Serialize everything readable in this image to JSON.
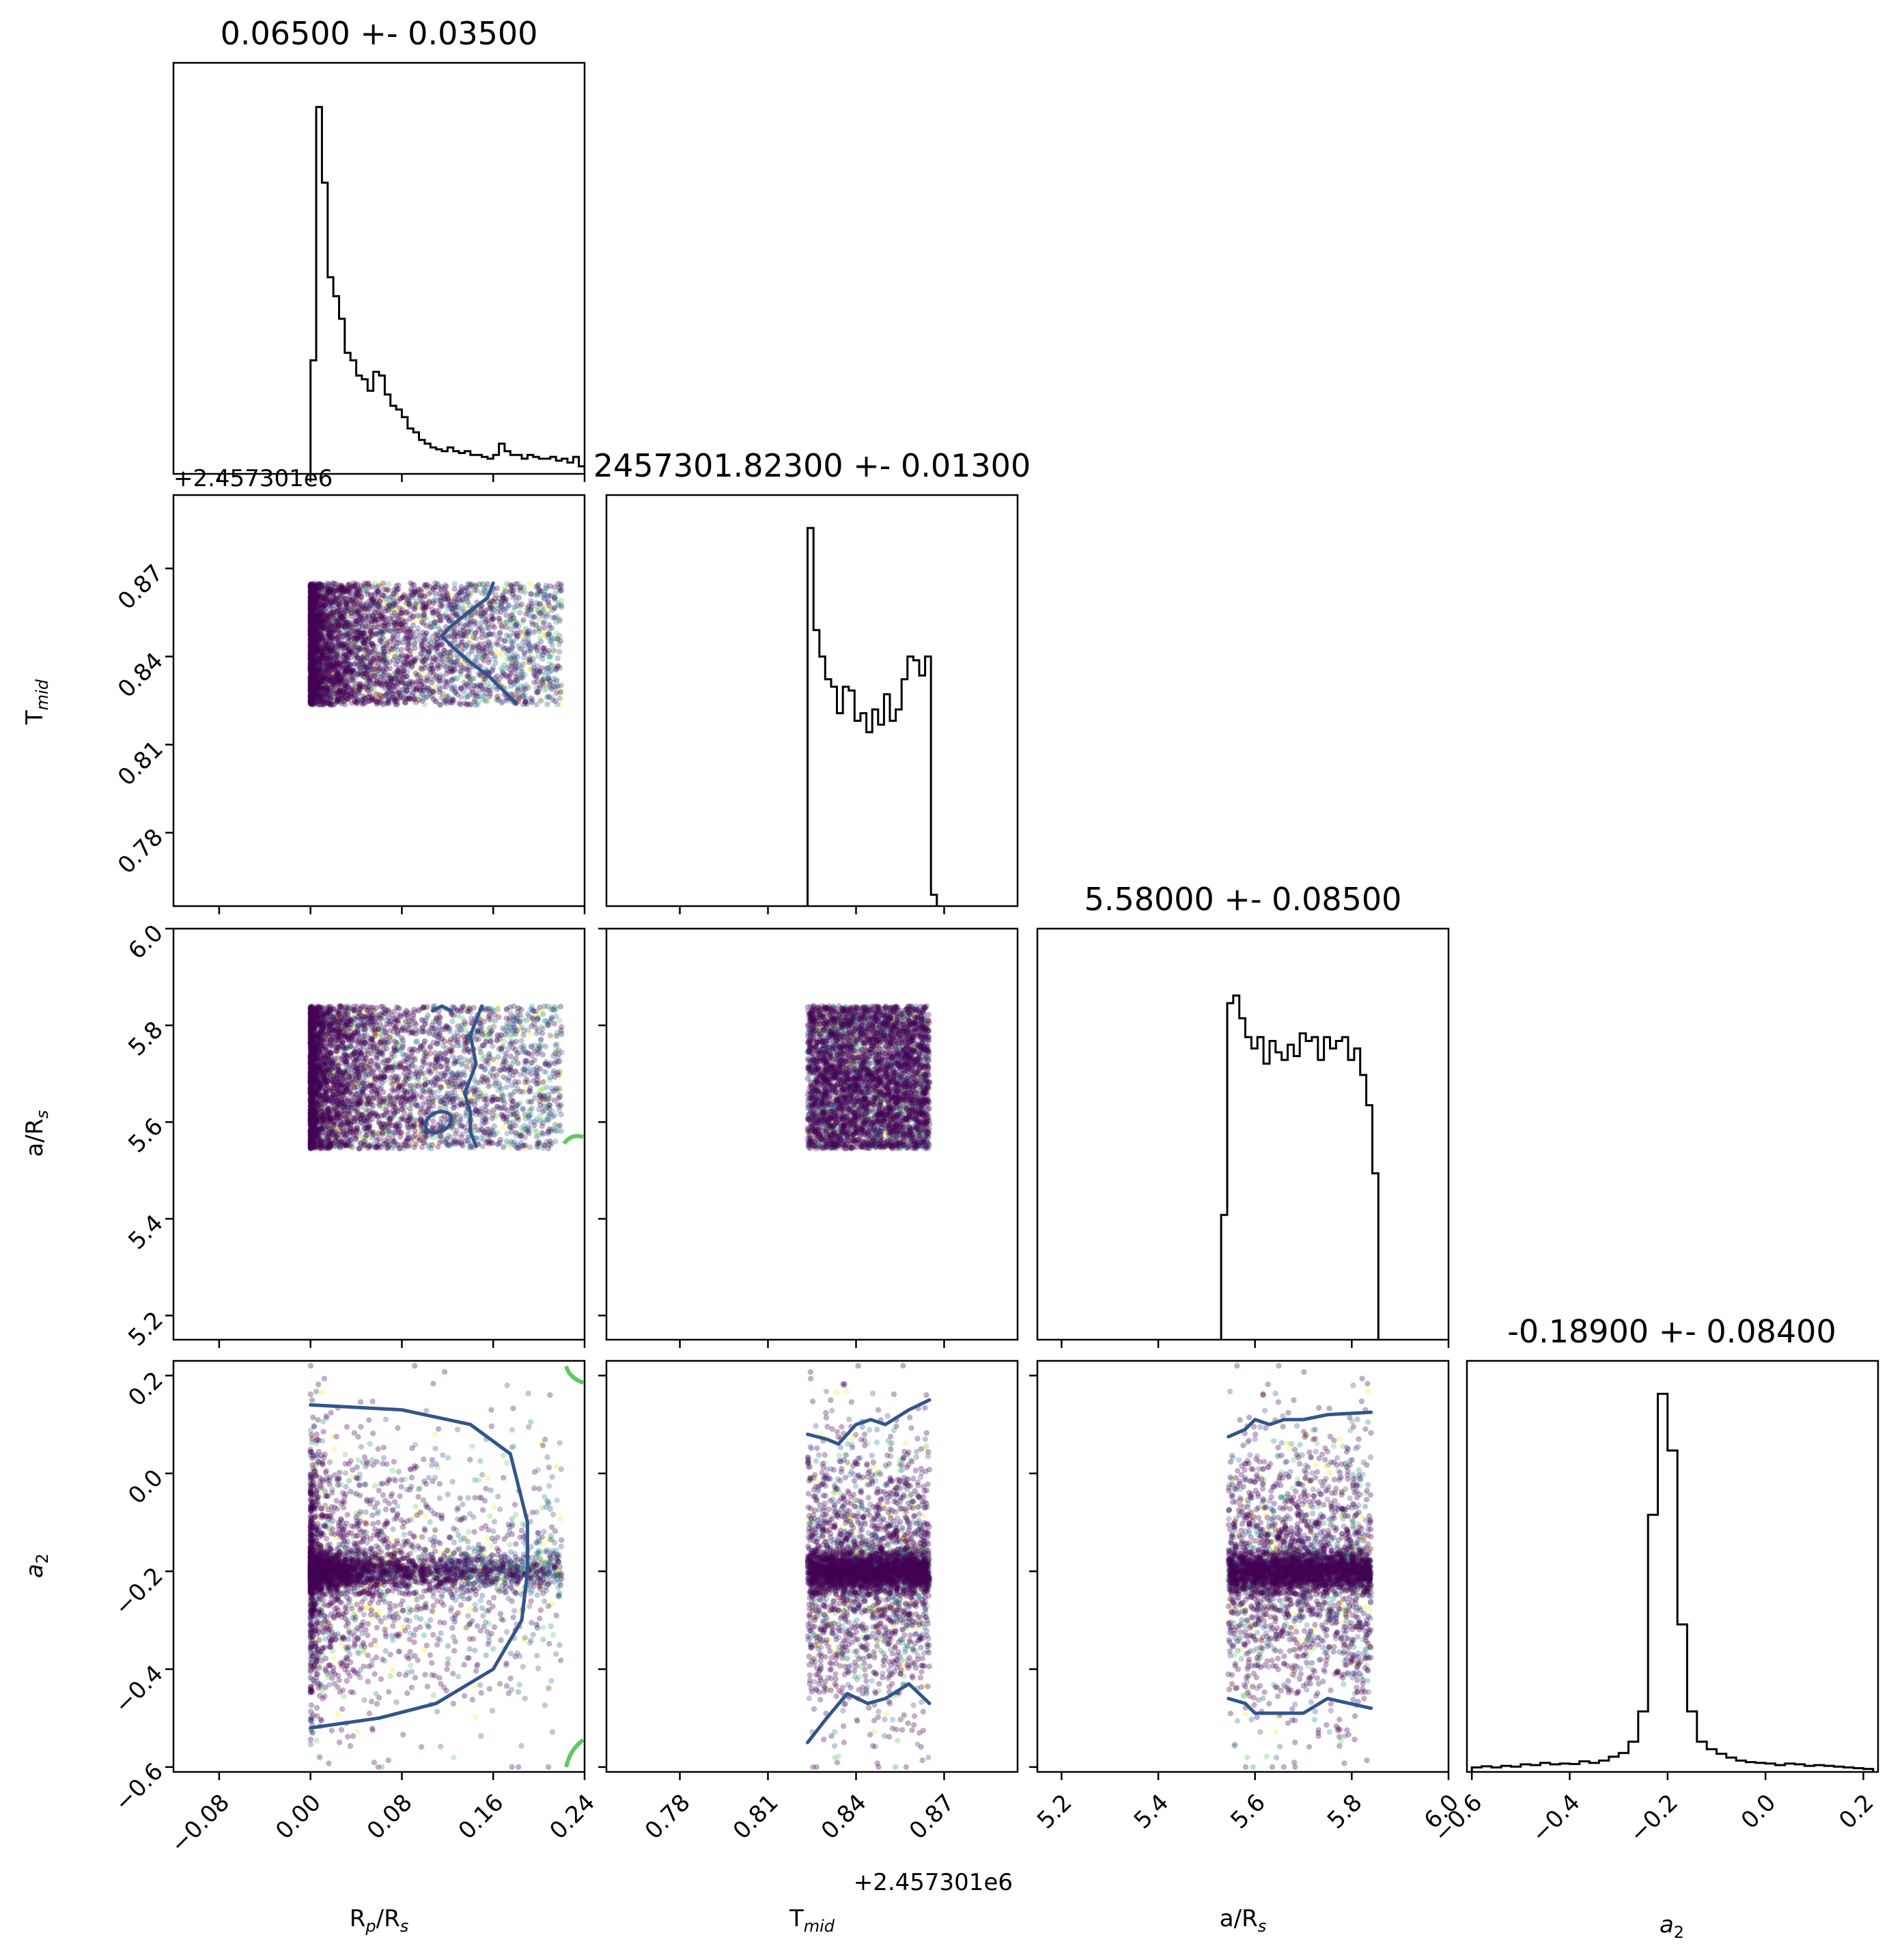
{
  "chart_data": {
    "type": "scatter",
    "subtype": "corner-plot",
    "parameters": [
      {
        "key": "rp",
        "label": "R_p/R_s",
        "range": [
          -0.12,
          0.24
        ],
        "ticks": [
          -0.08,
          0.0,
          0.08,
          0.16,
          0.24
        ],
        "tick_labels": [
          "−0.08",
          "0.00",
          "0.08",
          "0.16",
          "0.24"
        ],
        "title": "0.06500 +- 0.03500"
      },
      {
        "key": "tmid",
        "label": "T_mid",
        "range": [
          0.755,
          0.895
        ],
        "ticks": [
          0.78,
          0.81,
          0.84,
          0.87
        ],
        "tick_labels": [
          "0.78",
          "0.81",
          "0.84",
          "0.87"
        ],
        "offset": "+2.457301e6",
        "title": "2457301.82300 +- 0.01300"
      },
      {
        "key": "ars",
        "label": "a/R_s",
        "range": [
          5.15,
          6.0
        ],
        "ticks": [
          5.2,
          5.4,
          5.6,
          5.8,
          6.0
        ],
        "tick_labels": [
          "5.2",
          "5.4",
          "5.6",
          "5.8",
          "6.0"
        ],
        "title": "5.58000 +- 0.08500"
      },
      {
        "key": "a2",
        "label": "a_2",
        "range": [
          -0.61,
          0.23
        ],
        "ticks": [
          -0.6,
          -0.4,
          -0.2,
          0.0,
          0.2
        ],
        "tick_labels": [
          "−0.6",
          "−0.4",
          "−0.2",
          "0.0",
          "0.2"
        ],
        "title": "-0.18900 +- 0.08400"
      }
    ],
    "histograms": {
      "rp": {
        "bin_start": 0.0,
        "bin_width": 0.005,
        "counts": [
          0.3,
          0.97,
          0.77,
          0.52,
          0.47,
          0.41,
          0.32,
          0.3,
          0.26,
          0.25,
          0.22,
          0.27,
          0.26,
          0.21,
          0.18,
          0.17,
          0.15,
          0.12,
          0.11,
          0.09,
          0.08,
          0.07,
          0.065,
          0.06,
          0.07,
          0.06,
          0.055,
          0.06,
          0.05,
          0.05,
          0.045,
          0.04,
          0.05,
          0.08,
          0.06,
          0.05,
          0.05,
          0.04,
          0.05,
          0.045,
          0.04,
          0.04,
          0.045,
          0.035,
          0.04,
          0.03,
          0.045,
          0.02,
          0.01
        ]
      },
      "tmid": {
        "bin_start": 0.8235,
        "bin_width": 0.002,
        "counts": [
          1.0,
          0.73,
          0.66,
          0.6,
          0.58,
          0.51,
          0.58,
          0.57,
          0.49,
          0.51,
          0.46,
          0.52,
          0.48,
          0.56,
          0.49,
          0.52,
          0.6,
          0.66,
          0.65,
          0.61,
          0.66,
          0.03
        ]
      },
      "ars": {
        "bin_start": 5.53,
        "bin_width": 0.0125,
        "counts": [
          0.33,
          0.89,
          0.91,
          0.85,
          0.8,
          0.77,
          0.8,
          0.73,
          0.79,
          0.76,
          0.74,
          0.78,
          0.75,
          0.81,
          0.79,
          0.8,
          0.74,
          0.8,
          0.77,
          0.79,
          0.8,
          0.74,
          0.77,
          0.7,
          0.62,
          0.44
        ]
      },
      "a2": {
        "bin_start": -0.6,
        "bin_width": 0.02,
        "counts": [
          0.012,
          0.015,
          0.012,
          0.016,
          0.014,
          0.02,
          0.018,
          0.024,
          0.02,
          0.022,
          0.021,
          0.028,
          0.024,
          0.03,
          0.04,
          0.05,
          0.08,
          0.16,
          0.68,
          1.0,
          0.85,
          0.39,
          0.16,
          0.08,
          0.06,
          0.048,
          0.038,
          0.03,
          0.026,
          0.024,
          0.022,
          0.018,
          0.022,
          0.02,
          0.016,
          0.018,
          0.016,
          0.014,
          0.012,
          0.01,
          0.008
        ]
      }
    },
    "scatter_regions": {
      "rp": [
        0.0,
        0.22
      ],
      "tmid": [
        0.8235,
        0.865
      ],
      "ars": [
        5.545,
        5.84
      ],
      "a2_core": -0.2
    },
    "contours": {
      "tmid_rp": [
        [
          0.865,
          0.16
        ],
        [
          0.86,
          0.155
        ],
        [
          0.855,
          0.138
        ],
        [
          0.85,
          0.122
        ],
        [
          0.847,
          0.115
        ],
        [
          0.843,
          0.125
        ],
        [
          0.838,
          0.14
        ],
        [
          0.833,
          0.157
        ],
        [
          0.828,
          0.17
        ],
        [
          0.824,
          0.18
        ]
      ],
      "ars_rp_line": [
        [
          5.84,
          0.15
        ],
        [
          5.78,
          0.14
        ],
        [
          5.72,
          0.145
        ],
        [
          5.66,
          0.135
        ],
        [
          5.62,
          0.14
        ],
        [
          5.58,
          0.14
        ],
        [
          5.55,
          0.145
        ]
      ],
      "ars_rp_loop_center": [
        5.6,
        0.112
      ],
      "ars_rp_top_arc": [
        [
          5.83,
          0.107
        ],
        [
          5.84,
          0.115
        ],
        [
          5.83,
          0.123
        ]
      ],
      "a2_rp": [
        [
          0.14,
          0.0
        ],
        [
          0.13,
          0.08
        ],
        [
          0.1,
          0.14
        ],
        [
          0.04,
          0.175
        ],
        [
          -0.1,
          0.19
        ],
        [
          -0.2,
          0.19
        ],
        [
          -0.3,
          0.185
        ],
        [
          -0.4,
          0.16
        ],
        [
          -0.47,
          0.11
        ],
        [
          -0.5,
          0.06
        ],
        [
          -0.52,
          0.0
        ]
      ],
      "a2_tmid_upper": [
        [
          0.08,
          0.8235
        ],
        [
          0.07,
          0.83
        ],
        [
          0.06,
          0.834
        ],
        [
          0.1,
          0.84
        ],
        [
          0.11,
          0.845
        ],
        [
          0.1,
          0.85
        ],
        [
          0.13,
          0.858
        ],
        [
          0.15,
          0.865
        ]
      ],
      "a2_tmid_lower": [
        [
          -0.55,
          0.8235
        ],
        [
          -0.5,
          0.83
        ],
        [
          -0.45,
          0.837
        ],
        [
          -0.47,
          0.844
        ],
        [
          -0.46,
          0.85
        ],
        [
          -0.43,
          0.858
        ],
        [
          -0.47,
          0.865
        ]
      ],
      "a2_ars_upper": [
        [
          0.075,
          5.545
        ],
        [
          0.09,
          5.58
        ],
        [
          0.11,
          5.6
        ],
        [
          0.1,
          5.63
        ],
        [
          0.11,
          5.66
        ],
        [
          0.11,
          5.7
        ],
        [
          0.12,
          5.75
        ],
        [
          0.125,
          5.84
        ]
      ],
      "a2_ars_lower": [
        [
          -0.46,
          5.545
        ],
        [
          -0.47,
          5.58
        ],
        [
          -0.49,
          5.6
        ],
        [
          -0.49,
          5.65
        ],
        [
          -0.49,
          5.7
        ],
        [
          -0.46,
          5.75
        ],
        [
          -0.48,
          5.84
        ]
      ]
    },
    "scatter_colormap": [
      "#440154",
      "#3b528b",
      "#21918c",
      "#5ec962",
      "#fde725"
    ]
  },
  "labels": {
    "rp": "R",
    "rp_sub": "p",
    "rp_rest": "/R",
    "rp_sub2": "s",
    "tmid": "T",
    "tmid_sub": "mid",
    "ars": "a/R",
    "ars_sub": "s",
    "a2": "a",
    "a2_sub": "2",
    "offset_top": "+2.457301e6",
    "offset_bottom": "+2.457301e6"
  }
}
